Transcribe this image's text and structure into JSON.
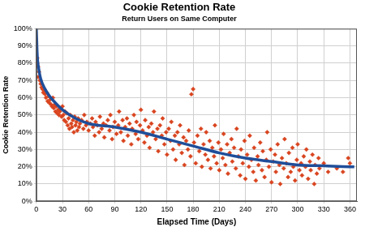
{
  "chart_data": {
    "type": "scatter",
    "title": "Cookie Retention Rate",
    "subtitle": "Return Users on Same Computer",
    "x_label": "Elapsed Time (Days)",
    "y_label": "Cookie Retention Rate",
    "xlim": [
      0,
      368
    ],
    "xticks": [
      0,
      30,
      60,
      90,
      120,
      150,
      180,
      210,
      240,
      270,
      300,
      330,
      360
    ],
    "ylim": [
      0,
      100
    ],
    "yticks": [
      {
        "value": 0,
        "label": "0%"
      },
      {
        "value": 10,
        "label": "10%"
      },
      {
        "value": 20,
        "label": "20%"
      },
      {
        "value": 30,
        "label": "30%"
      },
      {
        "value": 40,
        "label": "40%"
      },
      {
        "value": 50,
        "label": "50%"
      },
      {
        "value": 60,
        "label": "60%"
      },
      {
        "value": 70,
        "label": "70%"
      },
      {
        "value": 80,
        "label": "80%"
      },
      {
        "value": 90,
        "label": "90%"
      },
      {
        "value": 100,
        "label": "100%"
      }
    ],
    "grid": true,
    "series": [
      {
        "type": "scatter",
        "color": "#d9441f",
        "marker": "diamond",
        "x": [
          1,
          1,
          2,
          2,
          3,
          4,
          5,
          6,
          7,
          8,
          9,
          10,
          11,
          12,
          13,
          14,
          15,
          16,
          17,
          18,
          19,
          20,
          21,
          22,
          23,
          24,
          25,
          26,
          27,
          28,
          29,
          30,
          31,
          32,
          33,
          34,
          35,
          36,
          37,
          38,
          39,
          40,
          41,
          42,
          43,
          44,
          45,
          46,
          47,
          48,
          49,
          50,
          52,
          54,
          55,
          57,
          58,
          60,
          62,
          64,
          65,
          67,
          68,
          70,
          72,
          73,
          75,
          77,
          78,
          80,
          82,
          84,
          85,
          87,
          88,
          90,
          92,
          94,
          95,
          97,
          99,
          100,
          102,
          104,
          105,
          107,
          109,
          110,
          112,
          114,
          115,
          117,
          119,
          120,
          122,
          124,
          125,
          127,
          129,
          130,
          132,
          134,
          135,
          137,
          139,
          140,
          142,
          144,
          145,
          147,
          149,
          150,
          152,
          154,
          155,
          157,
          159,
          160,
          162,
          164,
          165,
          167,
          169,
          170,
          172,
          174,
          175,
          177,
          178,
          180,
          181,
          183,
          185,
          187,
          189,
          190,
          192,
          194,
          195,
          197,
          199,
          200,
          202,
          204,
          205,
          207,
          209,
          210,
          212,
          214,
          215,
          217,
          219,
          220,
          222,
          224,
          225,
          227,
          229,
          230,
          232,
          234,
          235,
          237,
          239,
          240,
          242,
          244,
          245,
          247,
          249,
          250,
          252,
          254,
          255,
          257,
          259,
          260,
          262,
          264,
          265,
          267,
          269,
          270,
          272,
          274,
          275,
          277,
          279,
          280,
          282,
          284,
          285,
          287,
          289,
          290,
          292,
          294,
          295,
          297,
          299,
          300,
          302,
          304,
          305,
          307,
          309,
          310,
          312,
          314,
          315,
          317,
          319,
          320,
          322,
          324,
          325,
          330,
          335,
          345,
          352,
          358,
          360
        ],
        "values": [
          83,
          80,
          78,
          72,
          75,
          70,
          68,
          66,
          65,
          63,
          64,
          62,
          60,
          63,
          58,
          61,
          57,
          59,
          56,
          55,
          60,
          54,
          56,
          52,
          55,
          51,
          53,
          50,
          52,
          54,
          49,
          55,
          50,
          47,
          52,
          46,
          51,
          44,
          48,
          42,
          50,
          45,
          43,
          47,
          40,
          49,
          44,
          46,
          41,
          48,
          43,
          45,
          47,
          42,
          50,
          44,
          46,
          41,
          45,
          48,
          43,
          38,
          46,
          44,
          40,
          49,
          42,
          45,
          37,
          44,
          47,
          41,
          50,
          36,
          43,
          46,
          39,
          44,
          52,
          40,
          47,
          35,
          43,
          48,
          38,
          45,
          33,
          42,
          50,
          39,
          46,
          36,
          44,
          53,
          41,
          34,
          47,
          38,
          43,
          31,
          45,
          40,
          52,
          36,
          42,
          29,
          44,
          38,
          48,
          33,
          40,
          27,
          42,
          35,
          46,
          30,
          38,
          24,
          40,
          33,
          44,
          28,
          37,
          21,
          35,
          30,
          41,
          26,
          62,
          65,
          34,
          22,
          38,
          29,
          42,
          20,
          33,
          27,
          40,
          24,
          35,
          19,
          31,
          26,
          44,
          22,
          34,
          18,
          30,
          25,
          39,
          21,
          33,
          16,
          28,
          36,
          23,
          31,
          19,
          42,
          26,
          15,
          30,
          22,
          35,
          13,
          27,
          20,
          38,
          24,
          17,
          31,
          12,
          26,
          21,
          34,
          18,
          29,
          14,
          24,
          40,
          20,
          30,
          11,
          23,
          27,
          17,
          33,
          21,
          10,
          25,
          19,
          36,
          22,
          14,
          28,
          17,
          31,
          20,
          12,
          24,
          33,
          18,
          22,
          15,
          26,
          20,
          30,
          13,
          23,
          18,
          27,
          10,
          21,
          16,
          25,
          19,
          22,
          17,
          19,
          17,
          25,
          22
        ]
      },
      {
        "type": "line",
        "color": "#1f4e99",
        "line_style": "solid",
        "x": [
          0,
          1,
          3,
          5,
          10,
          15,
          20,
          30,
          45,
          60,
          90,
          120,
          150,
          180,
          210,
          240,
          270,
          300,
          330,
          360,
          365
        ],
        "values": [
          100,
          85,
          76,
          71,
          65,
          61,
          58,
          53,
          48,
          45,
          43,
          40,
          36,
          32,
          28,
          25,
          23,
          21,
          20.5,
          20,
          20
        ]
      }
    ]
  }
}
